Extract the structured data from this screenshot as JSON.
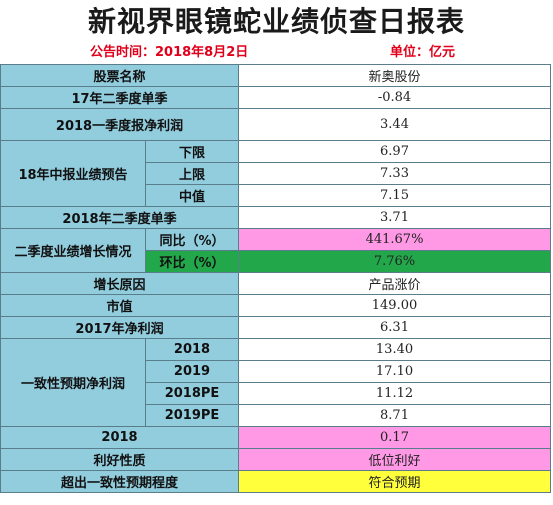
{
  "header": {
    "title": "新视界眼镜蛇业绩侦查日报表",
    "announce": "公告时间：2018年8月2日",
    "unit": "单位：亿元"
  },
  "table": {
    "stock_name_label": "股票名称",
    "stock_name_value": "新奥股份",
    "q2_2017_label": "17年二季度单季",
    "q2_2017_value": "-0.84",
    "q1_2018_label": "2018一季度报净利润",
    "q1_2018_value": "3.44",
    "forecast_label": "18年中报业绩预告",
    "forecast_low_label": "下限",
    "forecast_low_value": "6.97",
    "forecast_high_label": "上限",
    "forecast_high_value": "7.33",
    "forecast_mid_label": "中值",
    "forecast_mid_value": "7.15",
    "q2_2018_label": "2018年二季度单季",
    "q2_2018_value": "3.71",
    "growth_label": "二季度业绩增长情况",
    "yoy_label": "同比（%）",
    "yoy_value": "441.67%",
    "qoq_label": "环比（%）",
    "qoq_value": "7.76%",
    "reason_label": "增长原因",
    "reason_value": "产品涨价",
    "market_cap_label": "市值",
    "market_cap_value": "149.00",
    "net_2017_label": "2017年净利润",
    "net_2017_value": "6.31",
    "consensus_label": "一致性预期净利润",
    "c_2018_label": "2018",
    "c_2018_value": "13.40",
    "c_2019_label": "2019",
    "c_2019_value": "17.10",
    "pe_2018_label": "2018PE",
    "pe_2018_value": "11.12",
    "pe_2019_label": "2019PE",
    "pe_2019_value": "8.71",
    "y2018_label": "2018",
    "y2018_value": "0.17",
    "nature_label": "利好性质",
    "nature_value": "低位利好",
    "beat_label": "超出一致性预期程度",
    "beat_value": "符合预期"
  },
  "colors": {
    "label_bg": "#92cddd",
    "title_red": "#e0001b",
    "pink": "#ff99e6",
    "green": "#22a84a",
    "yellow": "#ffff3c"
  }
}
